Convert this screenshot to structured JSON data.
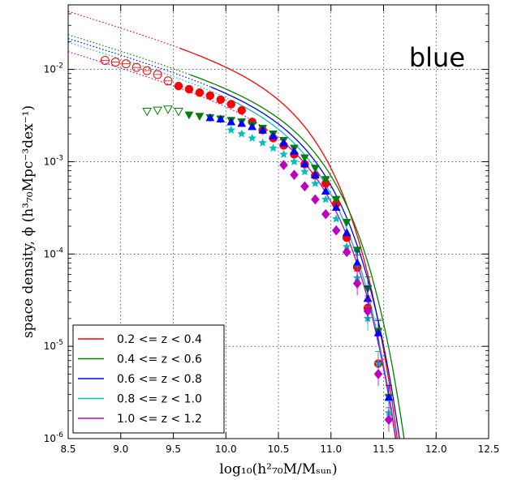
{
  "panel_label": "blue",
  "axes": {
    "xlabel": "log₁₀(h²₇₀M/Mₛᵤₙ)",
    "ylabel": "space density, ϕ (h³₇₀Mpc⁻³dex⁻¹)"
  },
  "chart_data": {
    "type": "scatter",
    "xlim": [
      8.5,
      12.5
    ],
    "ylim": [
      1e-06,
      0.05
    ],
    "yscale": "log",
    "grid": true,
    "legend_position": "lower-left",
    "xticks": [
      "8.5",
      "9.0",
      "9.5",
      "10.0",
      "10.5",
      "11.0",
      "11.5",
      "12.0",
      "12.5"
    ],
    "xtick_values": [
      8.5,
      9.0,
      9.5,
      10.0,
      10.5,
      11.0,
      11.5,
      12.0,
      12.5
    ],
    "yticks": [
      {
        "base": "10",
        "exp": "-6",
        "value": 1e-06
      },
      {
        "base": "10",
        "exp": "-5",
        "value": 1e-05
      },
      {
        "base": "10",
        "exp": "-4",
        "value": 0.0001
      },
      {
        "base": "10",
        "exp": "-3",
        "value": 0.001
      },
      {
        "base": "10",
        "exp": "-2",
        "value": 0.01
      }
    ],
    "series": [
      {
        "name": "0.2 <= z < 0.4",
        "color": "#ff0000",
        "marker": "circle",
        "open_points": [
          [
            8.85,
            0.0125
          ],
          [
            8.95,
            0.012
          ],
          [
            9.05,
            0.0115
          ],
          [
            9.15,
            0.0105
          ],
          [
            9.25,
            0.0097
          ],
          [
            9.35,
            0.0088
          ],
          [
            9.45,
            0.0075
          ]
        ],
        "points": [
          [
            9.55,
            0.0066
          ],
          [
            9.65,
            0.0061
          ],
          [
            9.75,
            0.0056
          ],
          [
            9.85,
            0.0052
          ],
          [
            9.95,
            0.0047
          ],
          [
            10.05,
            0.0042
          ],
          [
            10.15,
            0.0036
          ],
          [
            10.25,
            0.0027
          ],
          [
            10.35,
            0.0022
          ],
          [
            10.45,
            0.0018
          ],
          [
            10.55,
            0.0015
          ],
          [
            10.65,
            0.0012
          ],
          [
            10.75,
            0.00094
          ],
          [
            10.85,
            0.00071
          ],
          [
            10.95,
            0.00058
          ],
          [
            11.05,
            0.00035
          ],
          [
            11.15,
            0.00015
          ],
          [
            11.25,
            7.2e-05
          ],
          [
            11.35,
            2.6e-05
          ],
          [
            11.45,
            6.5e-06
          ]
        ],
        "fit": {
          "phi_star": 0.0031,
          "log_m_star": 10.72,
          "alpha": -1.35
        }
      },
      {
        "name": "0.4 <= z < 0.6",
        "color": "#008000",
        "marker": "triangle-down",
        "open_points": [
          [
            9.25,
            0.0035
          ],
          [
            9.35,
            0.0036
          ],
          [
            9.45,
            0.0037
          ],
          [
            9.55,
            0.0035
          ]
        ],
        "points": [
          [
            9.65,
            0.0032
          ],
          [
            9.75,
            0.0031
          ],
          [
            9.85,
            0.003
          ],
          [
            9.95,
            0.0029
          ],
          [
            10.05,
            0.0028
          ],
          [
            10.15,
            0.0027
          ],
          [
            10.25,
            0.0025
          ],
          [
            10.35,
            0.0023
          ],
          [
            10.45,
            0.002
          ],
          [
            10.55,
            0.0017
          ],
          [
            10.65,
            0.0014
          ],
          [
            10.75,
            0.0011
          ],
          [
            10.85,
            0.00085
          ],
          [
            10.95,
            0.00064
          ],
          [
            11.05,
            0.00039
          ],
          [
            11.15,
            0.00022
          ],
          [
            11.25,
            0.00011
          ],
          [
            11.35,
            4.2e-05
          ],
          [
            11.45,
            1.45e-05
          ],
          [
            11.55,
            2.8e-06
          ]
        ],
        "fit": {
          "phi_star": 0.0016,
          "log_m_star": 10.82,
          "alpha": -1.35
        }
      },
      {
        "name": "0.6 <= z < 0.8",
        "color": "#0000ff",
        "marker": "triangle-up",
        "points": [
          [
            9.85,
            0.003
          ],
          [
            9.95,
            0.0029
          ],
          [
            10.05,
            0.0027
          ],
          [
            10.15,
            0.0026
          ],
          [
            10.25,
            0.0024
          ],
          [
            10.35,
            0.0022
          ],
          [
            10.45,
            0.0019
          ],
          [
            10.55,
            0.0016
          ],
          [
            10.65,
            0.0013
          ],
          [
            10.75,
            0.00095
          ],
          [
            10.85,
            0.00072
          ],
          [
            10.95,
            0.00048
          ],
          [
            11.05,
            0.00032
          ],
          [
            11.15,
            0.00017
          ],
          [
            11.25,
            8e-05
          ],
          [
            11.35,
            3.3e-05
          ],
          [
            11.45,
            1.4e-05
          ],
          [
            11.55,
            2.8e-06
          ]
        ],
        "fit": {
          "phi_star": 0.0015,
          "log_m_star": 10.78,
          "alpha": -1.35
        }
      },
      {
        "name": "0.8 <= z < 1.0",
        "color": "#00bfbf",
        "marker": "star",
        "points": [
          [
            10.05,
            0.0022
          ],
          [
            10.15,
            0.002
          ],
          [
            10.25,
            0.0018
          ],
          [
            10.35,
            0.0016
          ],
          [
            10.45,
            0.0014
          ],
          [
            10.55,
            0.0012
          ],
          [
            10.65,
            0.001
          ],
          [
            10.75,
            0.00078
          ],
          [
            10.85,
            0.00058
          ],
          [
            10.95,
            0.00039
          ],
          [
            11.05,
            0.00024
          ],
          [
            11.15,
            0.00012
          ],
          [
            11.25,
            5.5e-05
          ],
          [
            11.35,
            2e-05
          ],
          [
            11.45,
            6.5e-06
          ],
          [
            11.55,
            1.9e-06
          ]
        ],
        "fit": {
          "phi_star": 0.0014,
          "log_m_star": 10.75,
          "alpha": -1.35
        }
      },
      {
        "name": "1.0 <= z < 1.2",
        "color": "#bf00bf",
        "marker": "diamond",
        "points": [
          [
            10.55,
            0.00092
          ],
          [
            10.65,
            0.00072
          ],
          [
            10.75,
            0.00054
          ],
          [
            10.85,
            0.00039
          ],
          [
            10.95,
            0.00027
          ],
          [
            11.05,
            0.00018
          ],
          [
            11.15,
            0.000105
          ],
          [
            11.25,
            4.8e-05
          ],
          [
            11.35,
            2.4e-05
          ],
          [
            11.45,
            5e-06
          ],
          [
            11.55,
            1.6e-06
          ]
        ],
        "fit": {
          "phi_star": 0.0011,
          "log_m_star": 10.76,
          "alpha": -1.35
        }
      }
    ]
  }
}
